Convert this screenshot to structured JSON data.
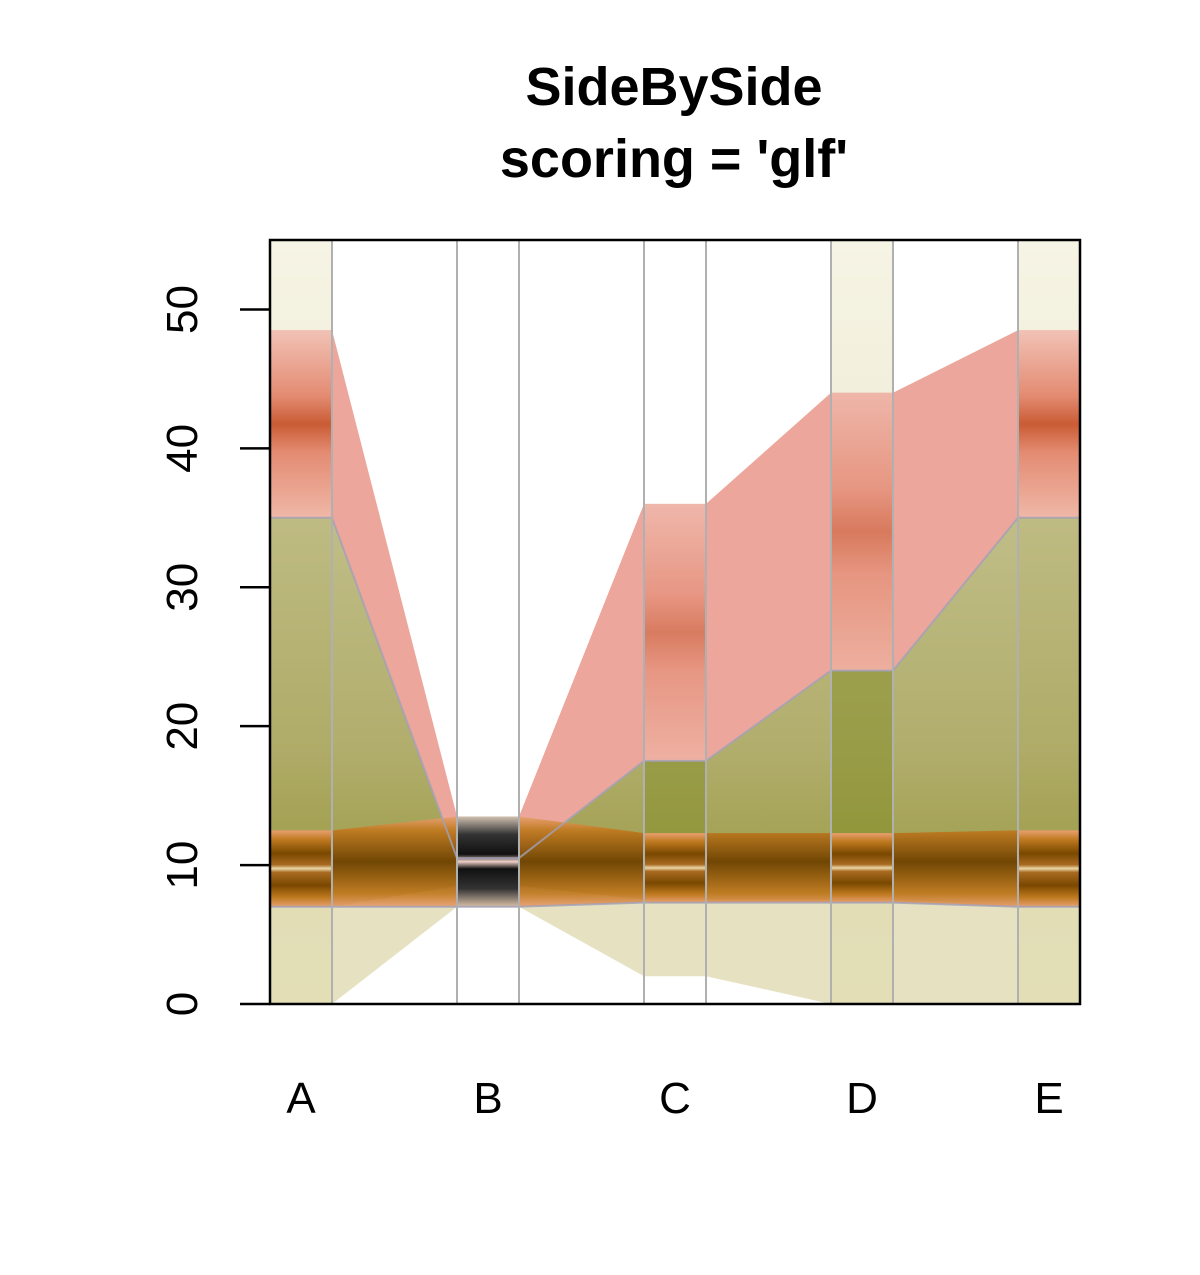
{
  "chart_data": {
    "type": "area",
    "title": "SideBySide",
    "subtitle": "scoring = 'glf'",
    "xlabel": "",
    "ylabel": "",
    "ylim": [
      0,
      55
    ],
    "yticks": [
      0,
      10,
      20,
      30,
      40,
      50
    ],
    "categories": [
      "A",
      "B",
      "C",
      "D",
      "E"
    ],
    "grid": false,
    "legend": "none",
    "series": [
      {
        "color": "#8c8c2a",
        "band_low": [
          7,
          8.5,
          7.5,
          7.5,
          7
        ],
        "band_high": [
          35,
          10.5,
          17.5,
          24,
          35
        ],
        "stripe_low": [
          7,
          7,
          7.3,
          7.3,
          7
        ],
        "stripe_high": [
          12.5,
          13.5,
          12.3,
          12.3,
          12.5
        ]
      },
      {
        "color": "#e0806a",
        "band_low": [
          35,
          10.5,
          17.5,
          24,
          35
        ],
        "band_high": [
          48.5,
          13.5,
          36,
          44,
          48.5
        ],
        "peak": [
          40,
          12,
          24,
          30,
          40
        ]
      }
    ],
    "colors": {
      "fill_background": "#ece8cc",
      "stripe_dark": "#7a4800",
      "stripe_mid": "#c07a20",
      "stripe_light": "#e8c890",
      "highlight_center": "#e07a60",
      "dark_node": "#222222",
      "separator_lines": "#b0b0b0"
    }
  }
}
